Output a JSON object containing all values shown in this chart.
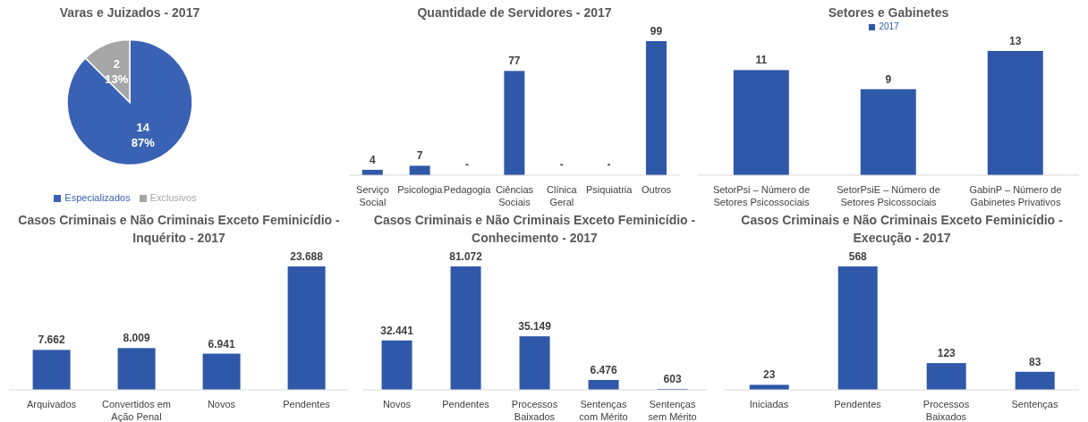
{
  "chart_data": [
    {
      "type": "pie",
      "title": "Varas e Juizados - 2017",
      "categories": [
        "Especializados",
        "Exclusivos"
      ],
      "values": [
        14,
        2
      ],
      "colors": [
        "#3a62b4",
        "#a6a6a6"
      ],
      "value_labels": [
        "14\n87%",
        "2\n13%"
      ],
      "legend": "bottom"
    },
    {
      "type": "bar",
      "title": "Quantidade de Servidores - 2017",
      "categories": [
        "Serviço Social",
        "Psicologia",
        "Pedagogia",
        "Ciências Sociais",
        "Clínica Geral",
        "Psiquiatria",
        "Outros"
      ],
      "values": [
        4,
        7,
        0,
        77,
        0,
        0,
        99
      ],
      "color": "#2f58a8",
      "value_labels": [
        "4",
        "7",
        "-",
        "77",
        "-",
        "-",
        "99"
      ]
    },
    {
      "type": "bar",
      "title": "Setores e Gabinetes",
      "categories": [
        "SetorPsi – Número de Setores Psicossociais",
        "SetorPsiE – Número de Setores Psicossociais Especializados",
        "GabinP – Número de Gabinetes Privativos"
      ],
      "series": [
        {
          "name": "2017",
          "color": "#2f58a8",
          "values": [
            11,
            9,
            13
          ]
        }
      ],
      "data_labels": true,
      "legend": "top"
    },
    {
      "type": "bar",
      "title": "Casos Criminais e Não Criminais Exceto Feminicídio - Inquérito - 2017",
      "categories": [
        "Arquivados",
        "Convertidos em Ação Penal",
        "Novos",
        "Pendentes"
      ],
      "values": [
        7662,
        8009,
        6941,
        23688
      ],
      "color": "#2f58a8",
      "value_labels": [
        "7.662",
        "8.009",
        "6.941",
        "23.688"
      ]
    },
    {
      "type": "bar",
      "title": "Casos Criminais e Não Criminais Exceto Feminicídio - Conhecimento - 2017",
      "categories": [
        "Novos",
        "Pendentes",
        "Processos Baixados",
        "Sentenças com Mérito",
        "Sentenças sem Mérito"
      ],
      "values": [
        32441,
        81072,
        35149,
        6476,
        603
      ],
      "color": "#2f58a8",
      "value_labels": [
        "32.441",
        "81.072",
        "35.149",
        "6.476",
        "603"
      ]
    },
    {
      "type": "bar",
      "title": "Casos Criminais e Não Criminais Exceto Feminicídio - Execução - 2017",
      "categories": [
        "Iniciadas",
        "Pendentes",
        "Processos Baixados",
        "Sentenças"
      ],
      "values": [
        23,
        568,
        123,
        83
      ],
      "color": "#2f58a8",
      "data_labels": true
    }
  ]
}
